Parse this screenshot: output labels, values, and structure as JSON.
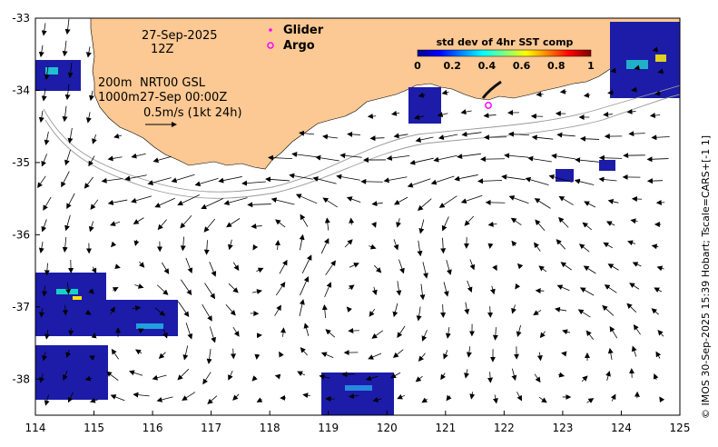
{
  "map": {
    "date_line1": "27-Sep-2025",
    "date_line2": "12Z",
    "depth_label_1": "200m",
    "depth_label_2": "1000m",
    "product": "NRT00 GSL",
    "product_time": "27-Sep 00:00Z",
    "scale_label": "0.5m/s (1kt 24h)",
    "x_ticks": [
      "114",
      "115",
      "116",
      "117",
      "118",
      "119",
      "120",
      "121",
      "122",
      "123",
      "124",
      "125"
    ],
    "y_ticks": [
      "-33",
      "-34",
      "-35",
      "-36",
      "-37",
      "-38"
    ],
    "x_range": [
      114,
      125
    ],
    "y_range": [
      -38.5,
      -33
    ],
    "land_color": "#fcc893",
    "vector_color": "#000000"
  },
  "legend": {
    "glider_label": "Glider",
    "argo_label": "Argo",
    "marker_color": "#ff00ff"
  },
  "colorbar": {
    "title": "std dev of 4hr SST comp",
    "ticks": [
      "0",
      "0.2",
      "0.4",
      "0.6",
      "0.8",
      "1"
    ],
    "colormap": "jet"
  },
  "credit": "© IMOS 30-Sep-2025 15:39 Hobart; Tscale=CARS+[-1 1]"
}
